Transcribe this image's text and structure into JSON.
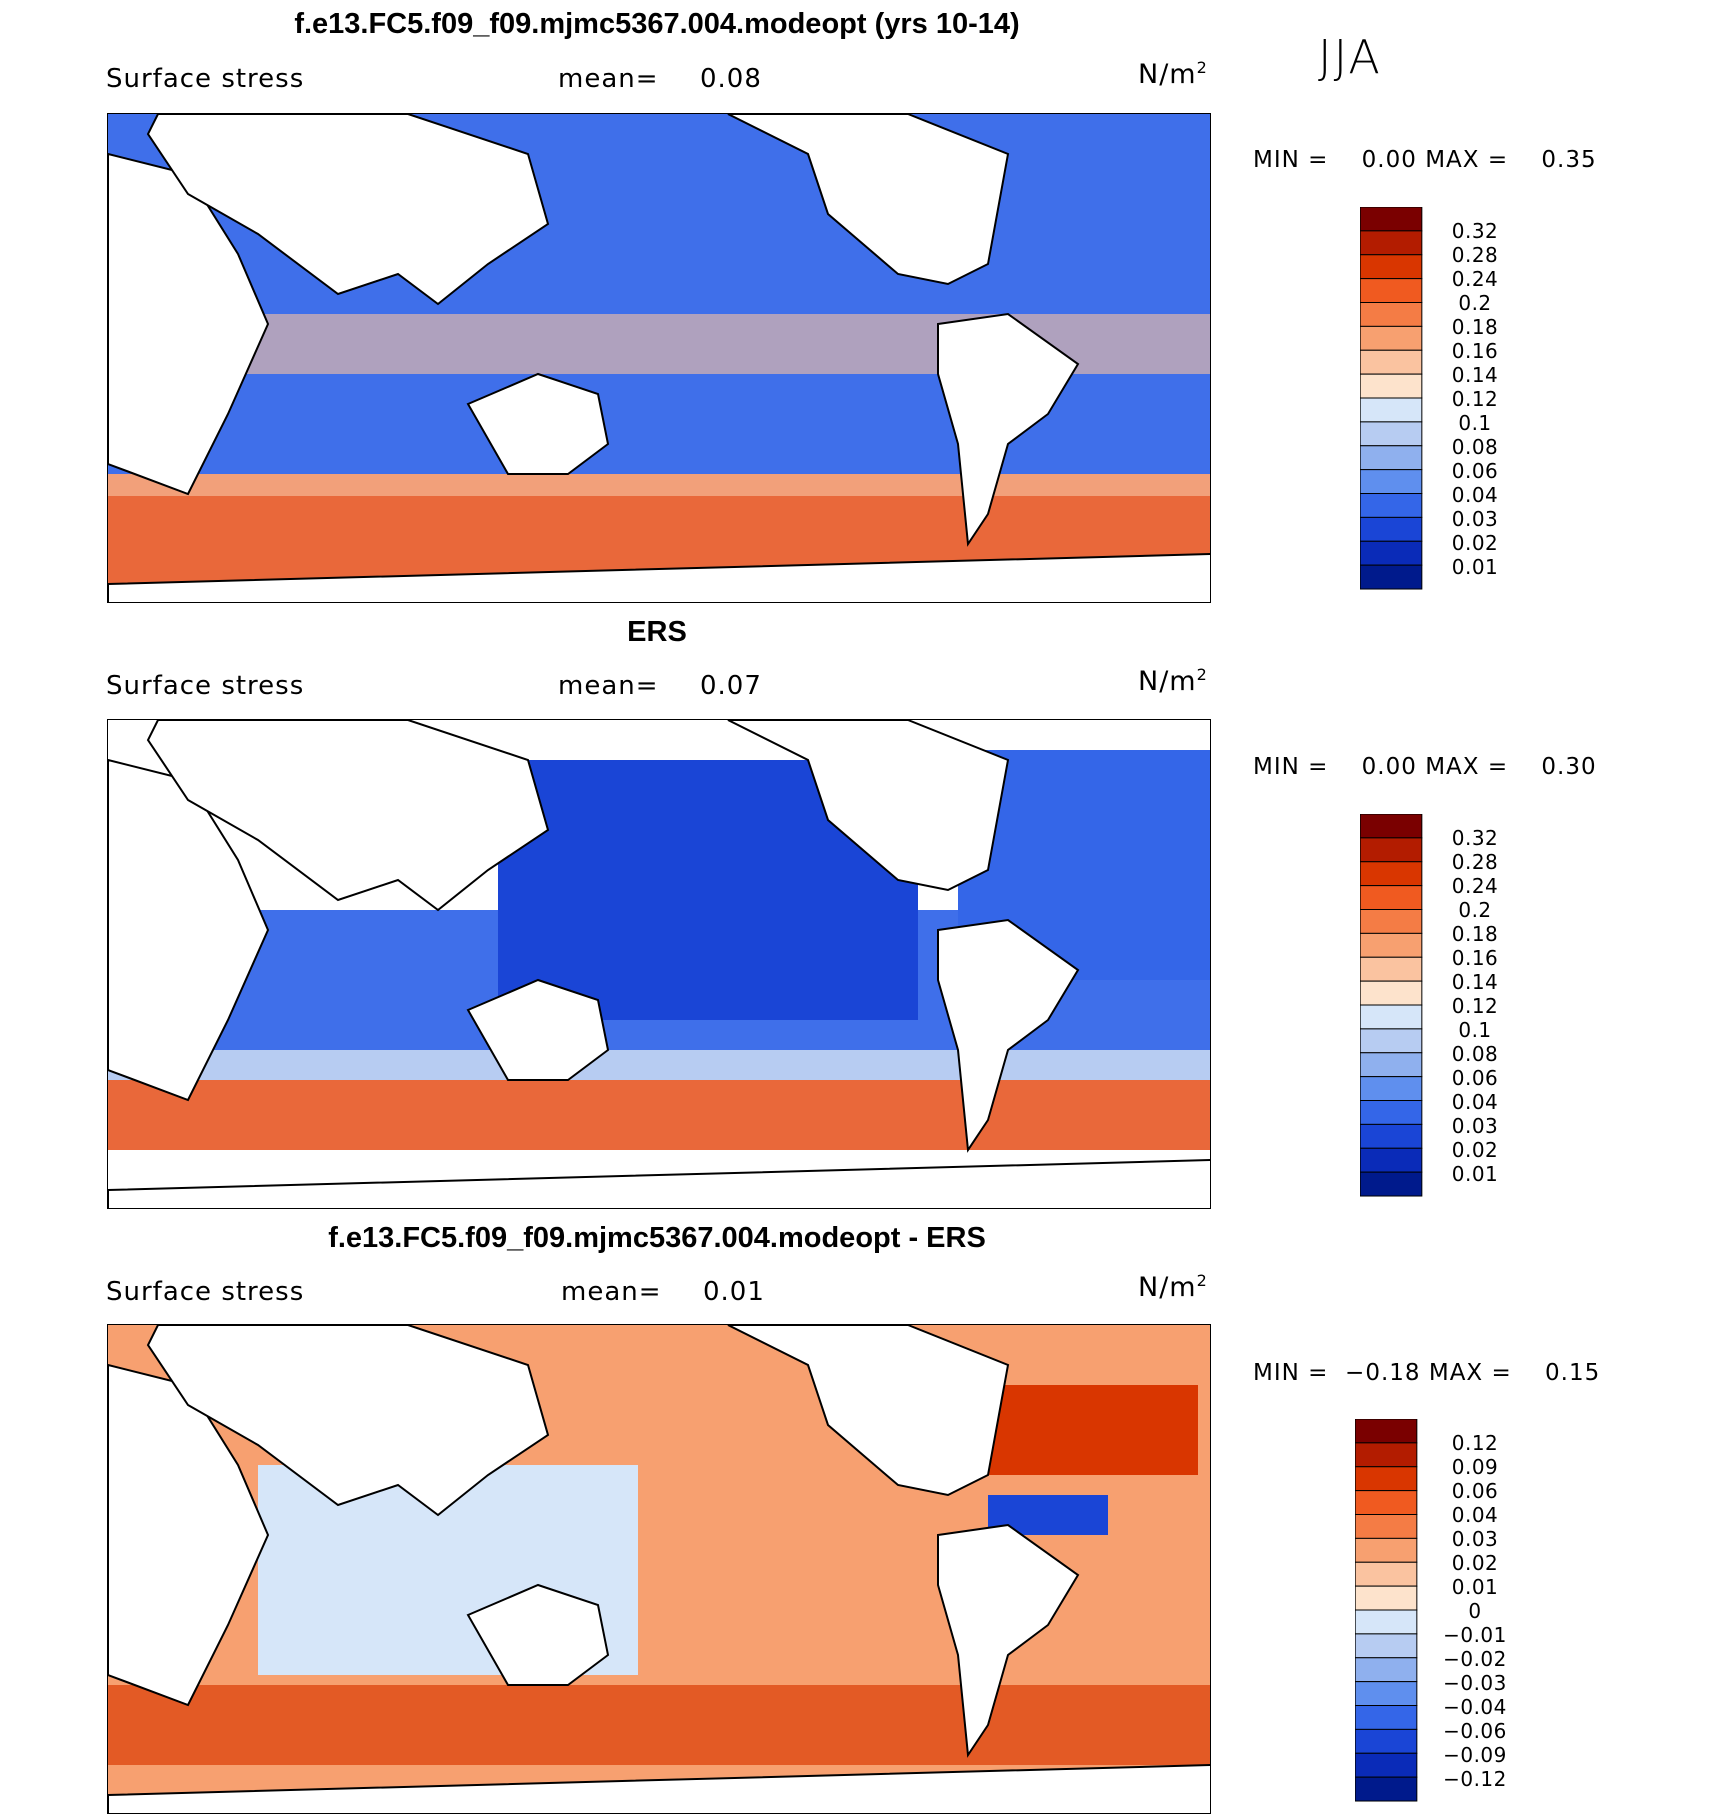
{
  "season": "JJA",
  "panels": [
    {
      "title": "f.e13.FC5.f09_f09.mjmc5367.004.modeopt (yrs 10-14)",
      "variable": "Surface stress",
      "mean_label": "mean=",
      "mean_value": "0.08",
      "units": "N/m",
      "units_sup": "2",
      "min_label": "MIN =",
      "min_value": "0.00",
      "max_label": "MAX =",
      "max_value": "0.35",
      "colorbar": {
        "labels": [
          "0.32",
          "0.28",
          "0.24",
          "0.2",
          "0.18",
          "0.16",
          "0.14",
          "0.12",
          "0.1",
          "0.08",
          "0.06",
          "0.04",
          "0.03",
          "0.02",
          "0.01"
        ],
        "colors": [
          "#7a0000",
          "#b31c00",
          "#d93600",
          "#f05a20",
          "#f47c45",
          "#f7a070",
          "#fac3a0",
          "#fde3cc",
          "#d6e6f9",
          "#b7ccf2",
          "#8fb0ee",
          "#5f8fee",
          "#3466e8",
          "#1a45d6",
          "#0a2bb8",
          "#001a8c"
        ]
      }
    },
    {
      "title": "ERS",
      "variable": "Surface stress",
      "mean_label": "mean=",
      "mean_value": "0.07",
      "units": "N/m",
      "units_sup": "2",
      "min_label": "MIN =",
      "min_value": "0.00",
      "max_label": "MAX =",
      "max_value": "0.30",
      "colorbar": {
        "labels": [
          "0.32",
          "0.28",
          "0.24",
          "0.2",
          "0.18",
          "0.16",
          "0.14",
          "0.12",
          "0.1",
          "0.08",
          "0.06",
          "0.04",
          "0.03",
          "0.02",
          "0.01"
        ],
        "colors": [
          "#7a0000",
          "#b31c00",
          "#d93600",
          "#f05a20",
          "#f47c45",
          "#f7a070",
          "#fac3a0",
          "#fde3cc",
          "#d6e6f9",
          "#b7ccf2",
          "#8fb0ee",
          "#5f8fee",
          "#3466e8",
          "#1a45d6",
          "#0a2bb8",
          "#001a8c"
        ]
      }
    },
    {
      "title": "f.e13.FC5.f09_f09.mjmc5367.004.modeopt - ERS",
      "variable": "Surface stress",
      "mean_label": "mean=",
      "mean_value": "0.01",
      "units": "N/m",
      "units_sup": "2",
      "min_label": "MIN =",
      "min_value": "−0.18",
      "max_label": "MAX =",
      "max_value": "0.15",
      "colorbar": {
        "labels": [
          "0.12",
          "0.09",
          "0.06",
          "0.04",
          "0.03",
          "0.02",
          "0.01",
          "0",
          "−0.01",
          "−0.02",
          "−0.03",
          "−0.04",
          "−0.06",
          "−0.09",
          "−0.12"
        ],
        "colors": [
          "#7a0000",
          "#b31c00",
          "#d93600",
          "#f05a20",
          "#f47c45",
          "#f7a070",
          "#fac3a0",
          "#fde3cc",
          "#d6e6f9",
          "#b7ccf2",
          "#8fb0ee",
          "#5f8fee",
          "#3466e8",
          "#1a45d6",
          "#0a2bb8",
          "#001a8c"
        ]
      }
    }
  ]
}
